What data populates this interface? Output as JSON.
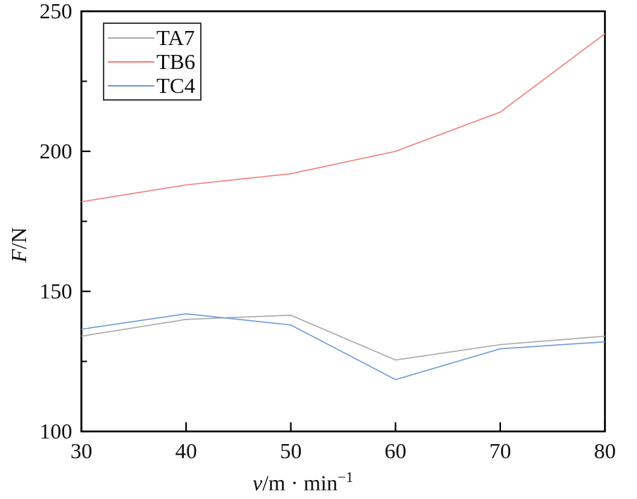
{
  "chart_data": {
    "type": "line",
    "title": "",
    "xlabel": "v/m · min^-1",
    "xlabel_parts": {
      "var": "v",
      "rest": "/m · min",
      "sup": "−1"
    },
    "ylabel": "F/N",
    "ylabel_parts": {
      "var": "F",
      "rest": "/N"
    },
    "x": [
      30,
      40,
      50,
      60,
      70,
      80
    ],
    "xlim": [
      30,
      80
    ],
    "ylim": [
      100,
      250
    ],
    "x_ticks": [
      30,
      40,
      50,
      60,
      70,
      80
    ],
    "y_ticks_major": [
      100,
      150,
      200,
      250
    ],
    "y_ticks_minor": [
      125,
      175,
      225
    ],
    "grid": false,
    "legend_position": "top-left",
    "series": [
      {
        "name": "TA7",
        "color": "#a9a9a9",
        "values": [
          134,
          140,
          141.5,
          125.5,
          131,
          134
        ]
      },
      {
        "name": "TB6",
        "color": "#ef7f7c",
        "values": [
          182,
          188,
          192,
          200,
          214,
          242
        ]
      },
      {
        "name": "TC4",
        "color": "#6f9bd8",
        "values": [
          136.5,
          142,
          138,
          118.5,
          129.5,
          132
        ]
      }
    ],
    "colors": {
      "axis": "#000000",
      "text": "#111111",
      "background": "#ffffff"
    }
  }
}
